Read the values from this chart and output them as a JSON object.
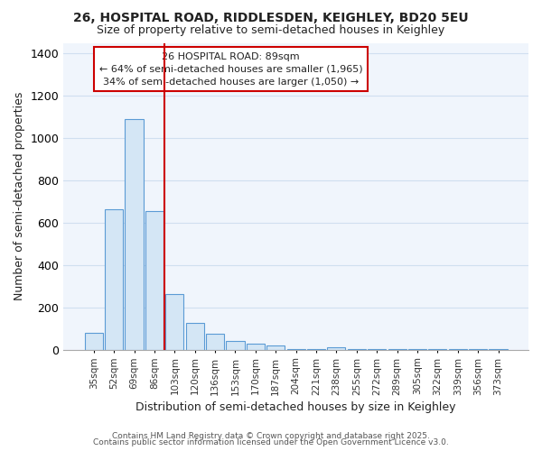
{
  "title1": "26, HOSPITAL ROAD, RIDDLESDEN, KEIGHLEY, BD20 5EU",
  "title2": "Size of property relative to semi-detached houses in Keighley",
  "xlabel": "Distribution of semi-detached houses by size in Keighley",
  "ylabel": "Number of semi-detached properties",
  "categories": [
    "35sqm",
    "52sqm",
    "69sqm",
    "86sqm",
    "103sqm",
    "120sqm",
    "136sqm",
    "153sqm",
    "170sqm",
    "187sqm",
    "204sqm",
    "221sqm",
    "238sqm",
    "255sqm",
    "272sqm",
    "289sqm",
    "305sqm",
    "322sqm",
    "339sqm",
    "356sqm",
    "373sqm"
  ],
  "values": [
    80,
    665,
    1090,
    655,
    265,
    128,
    75,
    40,
    28,
    20,
    5,
    3,
    10,
    5,
    3,
    3,
    3,
    3,
    3,
    3,
    3
  ],
  "bar_color": "#d4e6f5",
  "bar_edge_color": "#5b9bd5",
  "grid_color": "#d0dff0",
  "background_color": "#ffffff",
  "plot_bg_color": "#f0f5fc",
  "vline_x": 3.5,
  "vline_color": "#cc0000",
  "annotation_line1": "26 HOSPITAL ROAD: 89sqm",
  "annotation_line2": "← 64% of semi-detached houses are smaller (1,965)",
  "annotation_line3": "34% of semi-detached houses are larger (1,050) →",
  "annotation_box_color": "#ffffff",
  "annotation_box_edge": "#cc0000",
  "footer1": "Contains HM Land Registry data © Crown copyright and database right 2025.",
  "footer2": "Contains public sector information licensed under the Open Government Licence v3.0.",
  "ylim": [
    0,
    1450
  ],
  "yticks": [
    0,
    200,
    400,
    600,
    800,
    1000,
    1200,
    1400
  ]
}
